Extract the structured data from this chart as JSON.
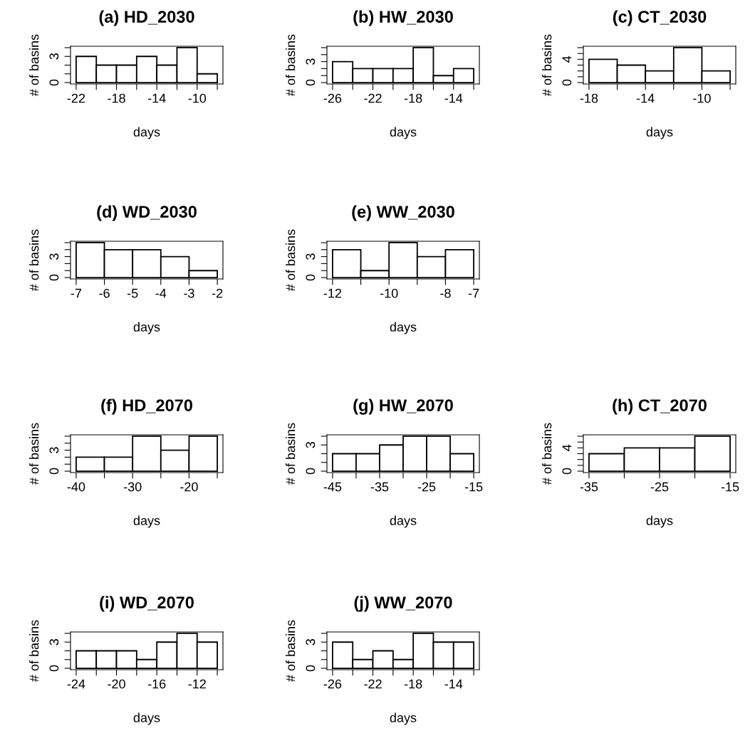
{
  "chart_data": [
    {
      "type": "histogram",
      "title": "(a) HD_2030",
      "xlabel": "days",
      "ylabel": "# of basins",
      "color": "#ffffff",
      "bins": [
        -22,
        -20,
        -18,
        -16,
        -14,
        -12,
        -10,
        -8
      ],
      "values": [
        3,
        2,
        2,
        3,
        2,
        4,
        1
      ],
      "xlim": [
        -22.56,
        -7.44
      ],
      "ylim": [
        -0.16,
        4.16
      ],
      "xticks": [
        -22,
        {
          "value": -20,
          "label": null
        },
        -18,
        {
          "value": -16,
          "label": null
        },
        -14,
        {
          "value": -12,
          "label": null
        },
        -10,
        {
          "value": -8,
          "label": null
        }
      ],
      "yticks": [
        0,
        {
          "value": 1,
          "label": null
        },
        {
          "value": 2,
          "label": null
        },
        3,
        {
          "value": 4,
          "label": null
        }
      ]
    },
    {
      "type": "histogram",
      "title": "(b) HW_2030",
      "xlabel": "days",
      "ylabel": "# of basins",
      "color": "#ffffff",
      "bins": [
        -26,
        -24,
        -22,
        -20,
        -18,
        -16,
        -14,
        -12
      ],
      "values": [
        3,
        2,
        2,
        2,
        5,
        1,
        2
      ],
      "xlim": [
        -26.56,
        -11.44
      ],
      "ylim": [
        -0.2,
        5.2
      ],
      "xticks": [
        -26,
        {
          "value": -24,
          "label": null
        },
        -22,
        {
          "value": -20,
          "label": null
        },
        -18,
        {
          "value": -16,
          "label": null
        },
        -14,
        {
          "value": -12,
          "label": null
        }
      ],
      "yticks": [
        0,
        {
          "value": 1,
          "label": null
        },
        {
          "value": 2,
          "label": null
        },
        3,
        {
          "value": 4,
          "label": null
        },
        {
          "value": 5,
          "label": null
        }
      ]
    },
    {
      "type": "histogram",
      "title": "(c) CT_2030",
      "xlabel": "days",
      "ylabel": "# of basins",
      "color": "#ffffff",
      "bins": [
        -18,
        -16,
        -14,
        -12,
        -10,
        -8
      ],
      "values": [
        4,
        3,
        2,
        6,
        2
      ],
      "xlim": [
        -18.4,
        -7.6
      ],
      "ylim": [
        -0.24,
        6.24
      ],
      "xticks": [
        -18,
        {
          "value": -16,
          "label": null
        },
        -14,
        {
          "value": -12,
          "label": null
        },
        -10,
        {
          "value": -8,
          "label": null
        }
      ],
      "yticks": [
        0,
        {
          "value": 1,
          "label": null
        },
        {
          "value": 2,
          "label": null
        },
        {
          "value": 3,
          "label": null
        },
        4,
        {
          "value": 5,
          "label": null
        },
        {
          "value": 6,
          "label": null
        }
      ]
    },
    {
      "type": "histogram",
      "title": "(d) WD_2030",
      "xlabel": "days",
      "ylabel": "# of basins",
      "color": "#ffffff",
      "bins": [
        -7,
        -6,
        -5,
        -4,
        -3,
        -2
      ],
      "values": [
        5,
        4,
        4,
        3,
        1
      ],
      "xlim": [
        -7.2,
        -1.8
      ],
      "ylim": [
        -0.2,
        5.2
      ],
      "xticks": [
        -7,
        -6,
        -5,
        -4,
        -3,
        -2
      ],
      "yticks": [
        0,
        {
          "value": 1,
          "label": null
        },
        {
          "value": 2,
          "label": null
        },
        3,
        {
          "value": 4,
          "label": null
        },
        {
          "value": 5,
          "label": null
        }
      ]
    },
    {
      "type": "histogram",
      "title": "(e) WW_2030",
      "xlabel": "days",
      "ylabel": "# of basins",
      "color": "#ffffff",
      "bins": [
        -12,
        -11,
        -10,
        -9,
        -8,
        -7
      ],
      "values": [
        4,
        1,
        5,
        3,
        4
      ],
      "xlim": [
        -12.2,
        -6.8
      ],
      "ylim": [
        -0.2,
        5.2
      ],
      "xticks": [
        -12,
        {
          "value": -11,
          "label": null
        },
        -10,
        {
          "value": -9,
          "label": null
        },
        -8,
        -7
      ],
      "yticks": [
        0,
        {
          "value": 1,
          "label": null
        },
        {
          "value": 2,
          "label": null
        },
        3,
        {
          "value": 4,
          "label": null
        },
        {
          "value": 5,
          "label": null
        }
      ]
    },
    {
      "type": "histogram",
      "title": "(f) HD_2070",
      "xlabel": "days",
      "ylabel": "# of basins",
      "color": "#ffffff",
      "bins": [
        -40,
        -35,
        -30,
        -25,
        -20,
        -15
      ],
      "values": [
        2,
        2,
        5,
        3,
        5
      ],
      "xlim": [
        -41,
        -14
      ],
      "ylim": [
        -0.2,
        5.2
      ],
      "xticks": [
        -40,
        {
          "value": -35,
          "label": null
        },
        -30,
        {
          "value": -25,
          "label": null
        },
        -20,
        {
          "value": -15,
          "label": null
        }
      ],
      "yticks": [
        0,
        {
          "value": 1,
          "label": null
        },
        {
          "value": 2,
          "label": null
        },
        3,
        {
          "value": 4,
          "label": null
        },
        {
          "value": 5,
          "label": null
        }
      ]
    },
    {
      "type": "histogram",
      "title": "(g) HW_2070",
      "xlabel": "days",
      "ylabel": "# of basins",
      "color": "#ffffff",
      "bins": [
        -45,
        -40,
        -35,
        -30,
        -25,
        -20,
        -15
      ],
      "values": [
        2,
        2,
        3,
        4,
        4,
        2
      ],
      "xlim": [
        -46.2,
        -13.8
      ],
      "ylim": [
        -0.16,
        4.16
      ],
      "xticks": [
        -45,
        {
          "value": -40,
          "label": null
        },
        -35,
        {
          "value": -30,
          "label": null
        },
        -25,
        {
          "value": -20,
          "label": null
        },
        -15
      ],
      "yticks": [
        0,
        {
          "value": 1,
          "label": null
        },
        {
          "value": 2,
          "label": null
        },
        3,
        {
          "value": 4,
          "label": null
        }
      ]
    },
    {
      "type": "histogram",
      "title": "(h) CT_2070",
      "xlabel": "days",
      "ylabel": "# of basins",
      "color": "#ffffff",
      "bins": [
        -35,
        -30,
        -25,
        -20,
        -15
      ],
      "values": [
        3,
        4,
        4,
        6
      ],
      "xlim": [
        -35.8,
        -14.2
      ],
      "ylim": [
        -0.24,
        6.24
      ],
      "xticks": [
        -35,
        {
          "value": -30,
          "label": null
        },
        -25,
        {
          "value": -20,
          "label": null
        },
        -15
      ],
      "yticks": [
        0,
        {
          "value": 1,
          "label": null
        },
        {
          "value": 2,
          "label": null
        },
        {
          "value": 3,
          "label": null
        },
        4,
        {
          "value": 5,
          "label": null
        },
        {
          "value": 6,
          "label": null
        }
      ]
    },
    {
      "type": "histogram",
      "title": "(i) WD_2070",
      "xlabel": "days",
      "ylabel": "# of basins",
      "color": "#ffffff",
      "bins": [
        -24,
        -22,
        -20,
        -18,
        -16,
        -14,
        -12,
        -10
      ],
      "values": [
        2,
        2,
        2,
        1,
        3,
        4,
        3
      ],
      "xlim": [
        -24.56,
        -9.44
      ],
      "ylim": [
        -0.16,
        4.16
      ],
      "xticks": [
        -24,
        {
          "value": -22,
          "label": null
        },
        -20,
        {
          "value": -18,
          "label": null
        },
        -16,
        {
          "value": -14,
          "label": null
        },
        -12,
        {
          "value": -10,
          "label": null
        }
      ],
      "yticks": [
        0,
        {
          "value": 1,
          "label": null
        },
        {
          "value": 2,
          "label": null
        },
        3,
        {
          "value": 4,
          "label": null
        }
      ]
    },
    {
      "type": "histogram",
      "title": "(j) WW_2070",
      "xlabel": "days",
      "ylabel": "# of basins",
      "color": "#ffffff",
      "bins": [
        -26,
        -24,
        -22,
        -20,
        -18,
        -16,
        -14,
        -12
      ],
      "values": [
        3,
        1,
        2,
        1,
        4,
        3,
        3
      ],
      "xlim": [
        -26.56,
        -11.44
      ],
      "ylim": [
        -0.16,
        4.16
      ],
      "xticks": [
        -26,
        {
          "value": -24,
          "label": null
        },
        -22,
        {
          "value": -20,
          "label": null
        },
        -18,
        {
          "value": -16,
          "label": null
        },
        -14,
        {
          "value": -12,
          "label": null
        }
      ],
      "yticks": [
        0,
        {
          "value": 1,
          "label": null
        },
        {
          "value": 2,
          "label": null
        },
        3,
        {
          "value": 4,
          "label": null
        }
      ]
    }
  ]
}
